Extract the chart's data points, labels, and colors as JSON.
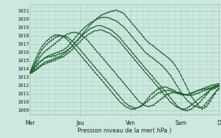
{
  "title": "Pression niveau de la mer( hPa )",
  "bg_color": "#cce8df",
  "grid_color": "#aaccbb",
  "line_color": "#1a5c2a",
  "ylim": [
    1008.5,
    1021.8
  ],
  "yticks": [
    1009,
    1010,
    1011,
    1012,
    1013,
    1014,
    1015,
    1016,
    1017,
    1018,
    1019,
    1020,
    1021
  ],
  "xtick_labels": [
    "Mer",
    "Jeu",
    "Ven",
    "Sam",
    "D"
  ],
  "xtick_positions": [
    0,
    24,
    48,
    72,
    90
  ],
  "num_hours": 91,
  "series": [
    [
      1013.5,
      1013.8,
      1014.1,
      1014.4,
      1014.7,
      1014.9,
      1015.1,
      1015.3,
      1015.4,
      1015.5,
      1015.5,
      1015.6,
      1015.6,
      1015.7,
      1015.8,
      1015.9,
      1016.0,
      1016.1,
      1016.3,
      1016.5,
      1016.7,
      1017.0,
      1017.3,
      1017.6,
      1017.9,
      1018.2,
      1018.5,
      1018.8,
      1019.1,
      1019.4,
      1019.6,
      1019.9,
      1020.1,
      1020.3,
      1020.5,
      1020.6,
      1020.7,
      1020.8,
      1020.9,
      1021.0,
      1021.0,
      1021.1,
      1021.0,
      1020.9,
      1020.8,
      1020.6,
      1020.3,
      1020.0,
      1019.7,
      1019.4,
      1019.1,
      1018.8,
      1018.5,
      1018.2,
      1017.9,
      1017.6,
      1017.3,
      1017.1,
      1016.9,
      1016.7,
      1016.5,
      1016.3,
      1016.1,
      1015.9,
      1015.7,
      1015.5,
      1015.3,
      1015.1,
      1014.8,
      1014.5,
      1014.1,
      1013.7,
      1013.2,
      1012.7,
      1012.2,
      1011.7,
      1011.2,
      1010.7,
      1010.3,
      1010.0,
      1009.7,
      1009.4,
      1009.2,
      1009.3,
      1009.5,
      1009.8,
      1010.2,
      1010.6,
      1011.0,
      1011.4,
      1011.7
    ],
    [
      1013.5,
      1013.7,
      1014.0,
      1014.3,
      1014.6,
      1014.9,
      1015.1,
      1015.3,
      1015.5,
      1015.6,
      1015.7,
      1015.8,
      1015.9,
      1016.0,
      1016.1,
      1016.2,
      1016.3,
      1016.5,
      1016.7,
      1017.0,
      1017.3,
      1017.6,
      1017.9,
      1018.2,
      1018.5,
      1018.7,
      1019.0,
      1019.2,
      1019.4,
      1019.6,
      1019.7,
      1019.9,
      1020.0,
      1020.1,
      1020.2,
      1020.2,
      1020.2,
      1020.2,
      1020.1,
      1020.0,
      1019.9,
      1019.8,
      1019.6,
      1019.4,
      1019.2,
      1019.0,
      1018.7,
      1018.4,
      1018.1,
      1017.8,
      1017.5,
      1017.2,
      1016.9,
      1016.6,
      1016.3,
      1016.0,
      1015.8,
      1015.6,
      1015.4,
      1015.2,
      1015.0,
      1014.8,
      1014.6,
      1014.4,
      1014.1,
      1013.8,
      1013.5,
      1013.2,
      1012.8,
      1012.4,
      1012.0,
      1011.6,
      1011.2,
      1010.8,
      1010.5,
      1010.2,
      1010.0,
      1009.8,
      1009.6,
      1009.5,
      1009.4,
      1009.3,
      1009.4,
      1009.6,
      1009.9,
      1010.2,
      1010.5,
      1010.8,
      1011.1,
      1011.4,
      1011.6
    ],
    [
      1013.5,
      1013.6,
      1013.8,
      1014.0,
      1014.2,
      1014.4,
      1014.6,
      1014.8,
      1014.9,
      1015.0,
      1015.1,
      1015.2,
      1015.3,
      1015.4,
      1015.5,
      1015.6,
      1015.8,
      1016.0,
      1016.2,
      1016.5,
      1016.7,
      1017.0,
      1017.3,
      1017.5,
      1017.8,
      1018.0,
      1018.3,
      1018.5,
      1018.7,
      1018.9,
      1019.0,
      1019.1,
      1019.2,
      1019.2,
      1019.2,
      1019.1,
      1019.0,
      1018.9,
      1018.8,
      1018.6,
      1018.4,
      1018.2,
      1018.0,
      1017.7,
      1017.4,
      1017.1,
      1016.8,
      1016.5,
      1016.2,
      1015.9,
      1015.6,
      1015.3,
      1015.0,
      1014.7,
      1014.4,
      1014.1,
      1013.8,
      1013.5,
      1013.2,
      1012.9,
      1012.6,
      1012.3,
      1012.0,
      1011.7,
      1011.4,
      1011.1,
      1010.8,
      1010.5,
      1010.2,
      1009.9,
      1009.6,
      1009.4,
      1009.2,
      1009.1,
      1009.0,
      1009.0,
      1009.1,
      1009.2,
      1009.4,
      1009.6,
      1009.8,
      1010.0,
      1010.3,
      1010.6,
      1010.9,
      1011.2,
      1011.5,
      1011.7,
      1011.9,
      1012.0,
      1012.1
    ],
    [
      1013.5,
      1013.6,
      1013.7,
      1013.9,
      1014.1,
      1014.3,
      1014.5,
      1014.6,
      1014.7,
      1014.8,
      1014.9,
      1015.0,
      1015.1,
      1015.2,
      1015.3,
      1015.4,
      1015.5,
      1015.7,
      1015.9,
      1016.1,
      1016.3,
      1016.6,
      1016.8,
      1017.1,
      1017.3,
      1017.6,
      1017.8,
      1018.0,
      1018.2,
      1018.3,
      1018.5,
      1018.6,
      1018.6,
      1018.7,
      1018.7,
      1018.6,
      1018.5,
      1018.4,
      1018.3,
      1018.1,
      1017.9,
      1017.7,
      1017.5,
      1017.2,
      1016.9,
      1016.6,
      1016.3,
      1016.0,
      1015.7,
      1015.4,
      1015.1,
      1014.8,
      1014.5,
      1014.2,
      1013.9,
      1013.6,
      1013.3,
      1013.0,
      1012.7,
      1012.4,
      1012.1,
      1011.8,
      1011.5,
      1011.2,
      1010.9,
      1010.6,
      1010.3,
      1010.0,
      1009.8,
      1009.6,
      1009.4,
      1009.3,
      1009.2,
      1009.2,
      1009.2,
      1009.3,
      1009.5,
      1009.7,
      1009.9,
      1010.1,
      1010.3,
      1010.5,
      1010.7,
      1010.9,
      1011.1,
      1011.3,
      1011.5,
      1011.6,
      1011.7,
      1011.8,
      1011.9
    ],
    [
      1013.5,
      1013.9,
      1014.3,
      1014.7,
      1015.1,
      1015.5,
      1015.8,
      1016.1,
      1016.3,
      1016.5,
      1016.7,
      1016.9,
      1017.1,
      1017.3,
      1017.5,
      1017.7,
      1017.9,
      1018.1,
      1018.2,
      1018.3,
      1018.4,
      1018.4,
      1018.4,
      1018.3,
      1018.2,
      1018.0,
      1017.8,
      1017.6,
      1017.3,
      1017.0,
      1016.7,
      1016.4,
      1016.1,
      1015.8,
      1015.5,
      1015.2,
      1014.9,
      1014.6,
      1014.3,
      1014.0,
      1013.7,
      1013.4,
      1013.1,
      1012.8,
      1012.5,
      1012.2,
      1011.9,
      1011.6,
      1011.3,
      1011.0,
      1010.7,
      1010.4,
      1010.1,
      1009.9,
      1009.7,
      1009.6,
      1009.5,
      1009.5,
      1009.6,
      1009.7,
      1009.9,
      1010.1,
      1010.3,
      1010.5,
      1010.7,
      1010.9,
      1011.0,
      1011.1,
      1011.2,
      1011.2,
      1011.2,
      1011.2,
      1011.1,
      1011.0,
      1010.9,
      1010.8,
      1010.8,
      1010.8,
      1010.9,
      1011.0,
      1011.1,
      1011.2,
      1011.3,
      1011.4,
      1011.5,
      1011.6,
      1011.7,
      1011.8,
      1011.9,
      1012.0,
      1012.1
    ],
    [
      1013.5,
      1014.0,
      1014.5,
      1015.0,
      1015.5,
      1016.0,
      1016.4,
      1016.7,
      1017.0,
      1017.2,
      1017.4,
      1017.6,
      1017.8,
      1017.9,
      1018.0,
      1018.0,
      1018.0,
      1017.9,
      1017.8,
      1017.6,
      1017.4,
      1017.2,
      1016.9,
      1016.6,
      1016.3,
      1016.0,
      1015.7,
      1015.4,
      1015.1,
      1014.8,
      1014.5,
      1014.2,
      1013.9,
      1013.6,
      1013.3,
      1013.0,
      1012.7,
      1012.4,
      1012.1,
      1011.8,
      1011.5,
      1011.2,
      1010.9,
      1010.6,
      1010.3,
      1010.0,
      1009.8,
      1009.6,
      1009.5,
      1009.4,
      1009.3,
      1009.3,
      1009.4,
      1009.5,
      1009.7,
      1009.9,
      1010.1,
      1010.3,
      1010.5,
      1010.7,
      1010.9,
      1011.1,
      1011.2,
      1011.3,
      1011.4,
      1011.4,
      1011.4,
      1011.4,
      1011.3,
      1011.2,
      1011.1,
      1011.0,
      1010.9,
      1010.9,
      1010.9,
      1010.9,
      1011.0,
      1011.1,
      1011.2,
      1011.3,
      1011.4,
      1011.5,
      1011.6,
      1011.7,
      1011.8,
      1011.9,
      1012.0,
      1012.1,
      1012.1,
      1012.2,
      1012.2
    ],
    [
      1013.5,
      1014.2,
      1014.8,
      1015.4,
      1015.9,
      1016.4,
      1016.8,
      1017.1,
      1017.4,
      1017.6,
      1017.8,
      1018.0,
      1018.1,
      1018.1,
      1018.1,
      1018.0,
      1017.9,
      1017.7,
      1017.5,
      1017.2,
      1016.9,
      1016.6,
      1016.3,
      1016.0,
      1015.7,
      1015.4,
      1015.1,
      1014.8,
      1014.5,
      1014.2,
      1013.9,
      1013.6,
      1013.3,
      1013.0,
      1012.7,
      1012.4,
      1012.1,
      1011.8,
      1011.5,
      1011.2,
      1010.9,
      1010.6,
      1010.3,
      1010.0,
      1009.8,
      1009.6,
      1009.4,
      1009.3,
      1009.2,
      1009.2,
      1009.2,
      1009.3,
      1009.4,
      1009.6,
      1009.8,
      1010.1,
      1010.4,
      1010.7,
      1011.0,
      1011.2,
      1011.4,
      1011.6,
      1011.7,
      1011.8,
      1011.8,
      1011.8,
      1011.7,
      1011.6,
      1011.5,
      1011.4,
      1011.2,
      1011.1,
      1011.0,
      1010.9,
      1010.9,
      1010.9,
      1011.0,
      1011.1,
      1011.2,
      1011.3,
      1011.4,
      1011.5,
      1011.5,
      1011.6,
      1011.6,
      1011.7,
      1011.7,
      1011.8,
      1011.8,
      1011.9,
      1011.9
    ]
  ]
}
